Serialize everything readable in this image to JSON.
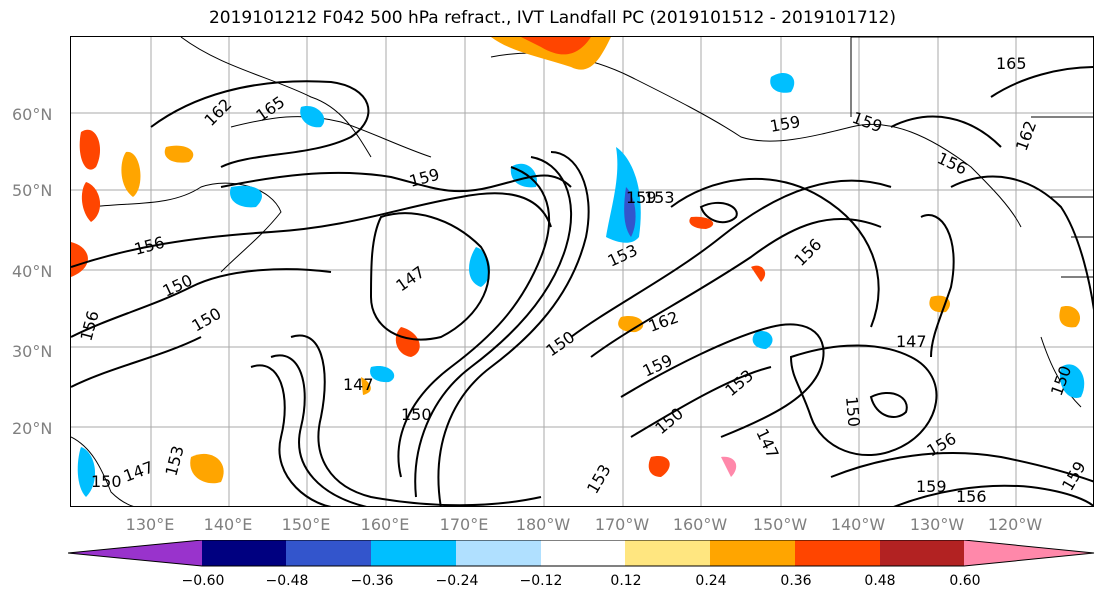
{
  "title": "2019101212 F042 500 hPa refract., IVT Landfall PC (2019101512 - 2019101712)",
  "latitude_labels": [
    {
      "text": "60°N",
      "value": 60
    },
    {
      "text": "50°N",
      "value": 50
    },
    {
      "text": "40°N",
      "value": 40
    },
    {
      "text": "30°N",
      "value": 30
    },
    {
      "text": "20°N",
      "value": 20
    }
  ],
  "longitude_labels": [
    "130°E",
    "140°E",
    "150°E",
    "160°E",
    "170°E",
    "180°W",
    "170°W",
    "160°W",
    "150°W",
    "140°W",
    "130°W",
    "120°W"
  ],
  "colorbar": {
    "ticks": [
      "−0.60",
      "−0.48",
      "−0.36",
      "−0.24",
      "−0.12",
      "0.12",
      "0.24",
      "0.36",
      "0.48",
      "0.60"
    ],
    "colors": {
      "under": "#9933cc",
      "bins": [
        "#000080",
        "#3355cc",
        "#00bfff",
        "#b0e0ff",
        "#ffffff",
        "#ffe680",
        "#ffa500",
        "#ff4500",
        "#b22222"
      ],
      "over": "#ff88aa"
    }
  },
  "contour_labels": [
    "162",
    "165",
    "159",
    "156",
    "150",
    "156",
    "150",
    "147",
    "159",
    "153",
    "153",
    "150",
    "150",
    "147",
    "162",
    "159",
    "153",
    "147",
    "150",
    "156",
    "159",
    "156",
    "147",
    "150",
    "159",
    "150",
    "153",
    "147",
    "153",
    "156",
    "159",
    "156",
    "159",
    "150",
    "162",
    "165"
  ]
}
